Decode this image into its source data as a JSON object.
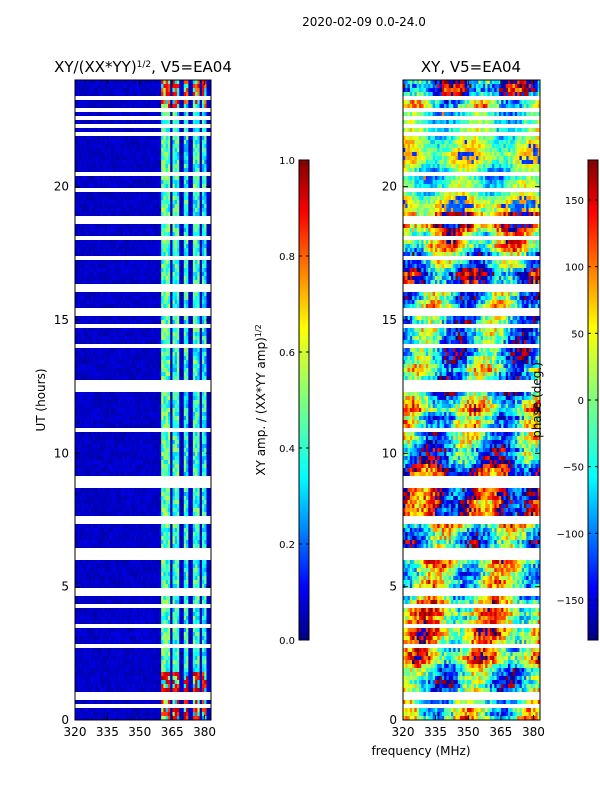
{
  "figure": {
    "suptitle": "2020-02-09 0.0-24.0",
    "shared_xlabel": "frequency (MHz)"
  },
  "chart_data": [
    {
      "type": "heatmap",
      "title": "XY/(XX*YY)^{1/2}, V5=EA04",
      "title_main": "XY/(XX*YY)",
      "title_sup": "1/2",
      "title_tail": ", V5=EA04",
      "xlabel": "",
      "ylabel": "UT (hours)",
      "xlim": [
        320,
        383
      ],
      "ylim": [
        0,
        24
      ],
      "xticks": [
        320,
        335,
        350,
        365,
        380
      ],
      "xtick_labels": [
        "320",
        "335",
        "350",
        "365",
        "380"
      ],
      "yticks": [
        0,
        5,
        10,
        15,
        20
      ],
      "ytick_labels": [
        "0",
        "5",
        "10",
        "15",
        "20"
      ],
      "colormap": "jet",
      "colorbar": {
        "label": "XY amp. / (XX*YY amp)^{1/2}",
        "label_main": "XY amp. / (XX*YY amp)",
        "label_sup": "1/2",
        "range": [
          0.0,
          1.0
        ],
        "ticks": [
          0.0,
          0.2,
          0.4,
          0.6,
          0.8,
          1.0
        ],
        "tick_labels": [
          "0.0",
          "0.2",
          "0.4",
          "0.6",
          "0.8",
          "1.0"
        ]
      },
      "background_value": 0.04,
      "bright_bands_mhz": [
        {
          "from": 360,
          "to": 364,
          "value": 0.45
        },
        {
          "from": 365,
          "to": 368,
          "value": 0.42
        },
        {
          "from": 370,
          "to": 373,
          "value": 0.4
        },
        {
          "from": 375,
          "to": 378,
          "value": 0.42
        },
        {
          "from": 379,
          "to": 381,
          "value": 0.38
        }
      ],
      "saturated_time_ranges_hours": [
        {
          "from": 0.0,
          "to": 1.8,
          "value": 0.95
        },
        {
          "from": 22.8,
          "to": 24.0,
          "value": 0.9
        }
      ],
      "blank_time_rows_hours": [
        0.5,
        0.9,
        2.8,
        3.5,
        4.3,
        4.8,
        6.1,
        6.2,
        6.3,
        7.5,
        8.8,
        8.9,
        9.0,
        10.9,
        12.4,
        12.6,
        14.0,
        14.8,
        15.3,
        16.2,
        17.3,
        18.1,
        18.7,
        18.8,
        19.9,
        20.5,
        22.0,
        22.3,
        22.6,
        22.9,
        23.3
      ]
    },
    {
      "type": "heatmap",
      "title": "XY, V5=EA04",
      "xlabel": "frequency (MHz)",
      "ylabel": "",
      "xlim": [
        320,
        383
      ],
      "ylim": [
        0,
        24
      ],
      "xticks": [
        320,
        335,
        350,
        365,
        380
      ],
      "xtick_labels": [
        "320",
        "335",
        "350",
        "365",
        "380"
      ],
      "yticks": [
        0,
        5,
        10,
        15,
        20
      ],
      "ytick_labels": [
        "0",
        "5",
        "10",
        "15",
        "20"
      ],
      "colormap": "jet",
      "colorbar": {
        "label": "phase (deg.)",
        "range": [
          -180,
          180
        ],
        "ticks": [
          -150,
          -100,
          -50,
          0,
          50,
          100,
          150
        ],
        "tick_labels": [
          "−150",
          "−100",
          "−50",
          "0",
          "50",
          "100",
          "150"
        ]
      },
      "value_range_deg": [
        -180,
        180
      ],
      "blank_time_rows_hours": [
        0.5,
        0.9,
        2.8,
        3.5,
        4.3,
        4.8,
        6.1,
        6.2,
        6.3,
        7.5,
        8.8,
        8.9,
        9.0,
        10.9,
        12.4,
        12.6,
        14.0,
        14.8,
        15.3,
        16.2,
        17.3,
        18.1,
        18.7,
        18.8,
        19.9,
        20.5,
        22.0,
        22.3,
        22.6,
        22.9,
        23.3
      ]
    }
  ]
}
